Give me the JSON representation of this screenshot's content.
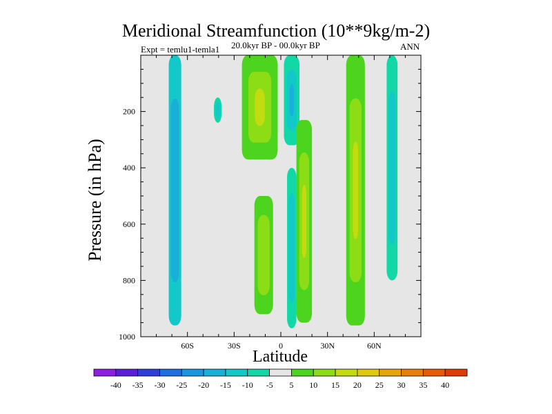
{
  "chart_data": {
    "type": "heatmap",
    "title": "Meridional Streamfunction (10**9kg/m-2)",
    "subtitle_left": "Expt = temlu1-temla1",
    "subtitle_center": "20.0kyr BP - 00.0kyr BP",
    "subtitle_right": "ANN",
    "xlabel": "Latitude",
    "ylabel": "Pressure (in hPa)",
    "xlim": [
      -90,
      90
    ],
    "ylim": [
      1000,
      0
    ],
    "x_ticks": [
      -60,
      -30,
      0,
      30,
      60
    ],
    "x_tick_labels": [
      "60S",
      "30S",
      "0",
      "30N",
      "60N"
    ],
    "y_ticks": [
      200,
      400,
      600,
      800,
      1000
    ],
    "y_tick_labels": [
      "200",
      "400",
      "600",
      "800",
      "1000"
    ],
    "background_color": "#e6e6e6",
    "colorbar": {
      "levels": [
        -40,
        -35,
        -30,
        -25,
        -20,
        -15,
        -10,
        -5,
        5,
        10,
        15,
        20,
        25,
        30,
        35,
        40
      ],
      "labels": [
        "-40",
        "-35",
        "-30",
        "-25",
        "-20",
        "-15",
        "-10",
        "-5",
        "5",
        "10",
        "15",
        "20",
        "25",
        "30",
        "35",
        "40"
      ],
      "colors": [
        "#8c1fe0",
        "#5a1ed6",
        "#2e3fd8",
        "#1f6fe0",
        "#1a96e0",
        "#18b0d8",
        "#12c8c8",
        "#12d8a8",
        "#e6e6e6",
        "#4cd41e",
        "#8cdc16",
        "#c2dc10",
        "#e0c80c",
        "#e6a60a",
        "#e6800a",
        "#e65a08",
        "#e03a06"
      ]
    },
    "features": [
      {
        "name": "cell-60S-negative",
        "value_range": [
          -15,
          -10
        ],
        "lat_range": [
          -72,
          -64
        ],
        "p_range": [
          0,
          960
        ]
      },
      {
        "name": "cell-40S-small-negative",
        "value_range": [
          -10,
          -5
        ],
        "lat_range": [
          -43,
          -38
        ],
        "p_range": [
          150,
          240
        ]
      },
      {
        "name": "cell-15S-upper-positive",
        "value_range": [
          5,
          20
        ],
        "lat_range": [
          -25,
          -2
        ],
        "p_range": [
          0,
          370
        ]
      },
      {
        "name": "cell-15S-lower-positive",
        "value_range": [
          5,
          10
        ],
        "lat_range": [
          -17,
          -5
        ],
        "p_range": [
          500,
          920
        ]
      },
      {
        "name": "cell-eq-upper-negative",
        "value_range": [
          -20,
          -5
        ],
        "lat_range": [
          2,
          12
        ],
        "p_range": [
          0,
          320
        ]
      },
      {
        "name": "cell-eq-lower-negative",
        "value_range": [
          -10,
          -5
        ],
        "lat_range": [
          4,
          10
        ],
        "p_range": [
          400,
          970
        ]
      },
      {
        "name": "cell-15N-positive",
        "value_range": [
          5,
          20
        ],
        "lat_range": [
          10,
          20
        ],
        "p_range": [
          230,
          950
        ]
      },
      {
        "name": "cell-45N-positive",
        "value_range": [
          5,
          25
        ],
        "lat_range": [
          42,
          54
        ],
        "p_range": [
          0,
          960
        ]
      },
      {
        "name": "cell-70N-negative",
        "value_range": [
          -10,
          -5
        ],
        "lat_range": [
          68,
          75
        ],
        "p_range": [
          0,
          800
        ]
      }
    ]
  }
}
